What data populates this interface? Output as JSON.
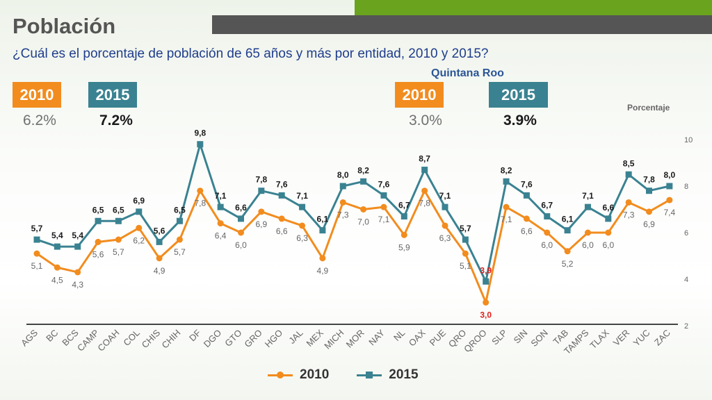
{
  "header": {
    "title": "Población",
    "subtitle": "¿Cuál es el porcentaje de población de 65 años y más por entidad, 2010 y 2015?"
  },
  "national": {
    "year_2010": "2010",
    "year_2015": "2015",
    "value_2010": "6.2%",
    "value_2015": "7.2%"
  },
  "quintana_roo": {
    "title": "Quintana Roo",
    "year_2010": "2010",
    "year_2015": "2015",
    "value_2010": "3.0%",
    "value_2015": "3.9%"
  },
  "colors": {
    "series_2010": "#f28c1e",
    "series_2015": "#3a8291",
    "highlight": "#e0201b"
  },
  "chart_data": {
    "type": "line",
    "ylabel": "Porcentaje",
    "ylim": [
      2,
      10
    ],
    "yticks": [
      2,
      4,
      6,
      8,
      10
    ],
    "highlight_category": "QROO",
    "categories": [
      "AGS",
      "BC",
      "BCS",
      "CAMP",
      "COAH",
      "COL",
      "CHIS",
      "CHIH",
      "DF",
      "DGO",
      "GTO",
      "GRO",
      "HGO",
      "JAL",
      "MEX",
      "MICH",
      "MOR",
      "NAY",
      "NL",
      "OAX",
      "PUE",
      "QRO",
      "QROO",
      "SLP",
      "SIN",
      "SON",
      "TAB",
      "TAMPS",
      "TLAX",
      "VER",
      "YUC",
      "ZAC"
    ],
    "series": [
      {
        "name": "2010",
        "values": [
          5.1,
          4.5,
          4.3,
          5.6,
          5.7,
          6.2,
          4.9,
          5.7,
          7.8,
          6.4,
          6.0,
          6.9,
          6.6,
          6.3,
          4.9,
          7.3,
          7.0,
          7.1,
          5.9,
          7.8,
          6.3,
          5.1,
          3.0,
          7.1,
          6.6,
          6.0,
          5.2,
          6.0,
          6.0,
          7.3,
          6.9,
          7.4
        ],
        "labels": [
          "5,1",
          "4,5",
          "4,3",
          "5,6",
          "5,7",
          "6,2",
          "4,9",
          "5,7",
          "7,8",
          "6,4",
          "6,0",
          "6,9",
          "6,6",
          "6,3",
          "4,9",
          "7,3",
          "7,0",
          "7,1",
          "5,9",
          "7,8",
          "6,3",
          "5,1",
          "3,0",
          "7,1",
          "6,6",
          "6,0",
          "5,2",
          "6,0",
          "6,0",
          "7,3",
          "6,9",
          "7,4"
        ]
      },
      {
        "name": "2015",
        "values": [
          5.7,
          5.4,
          5.4,
          6.5,
          6.5,
          6.9,
          5.6,
          6.5,
          9.8,
          7.1,
          6.6,
          7.8,
          7.6,
          7.1,
          6.1,
          8.0,
          8.2,
          7.6,
          6.7,
          8.7,
          7.1,
          5.7,
          3.9,
          8.2,
          7.6,
          6.7,
          6.1,
          7.1,
          6.6,
          8.5,
          7.8,
          8.0
        ],
        "labels": [
          "5,7",
          "5,4",
          "5,4",
          "6,5",
          "6,5",
          "6,9",
          "5,6",
          "6,5",
          "9,8",
          "7,1",
          "6,6",
          "7,8",
          "7,6",
          "7,1",
          "6,1",
          "8,0",
          "8,2",
          "7,6",
          "6,7",
          "8,7",
          "7,1",
          "5,7",
          "3,9",
          "8,2",
          "7,6",
          "6,7",
          "6,1",
          "7,1",
          "6,6",
          "8,5",
          "7,8",
          "8,0"
        ]
      }
    ],
    "legend": [
      "2010",
      "2015"
    ]
  }
}
